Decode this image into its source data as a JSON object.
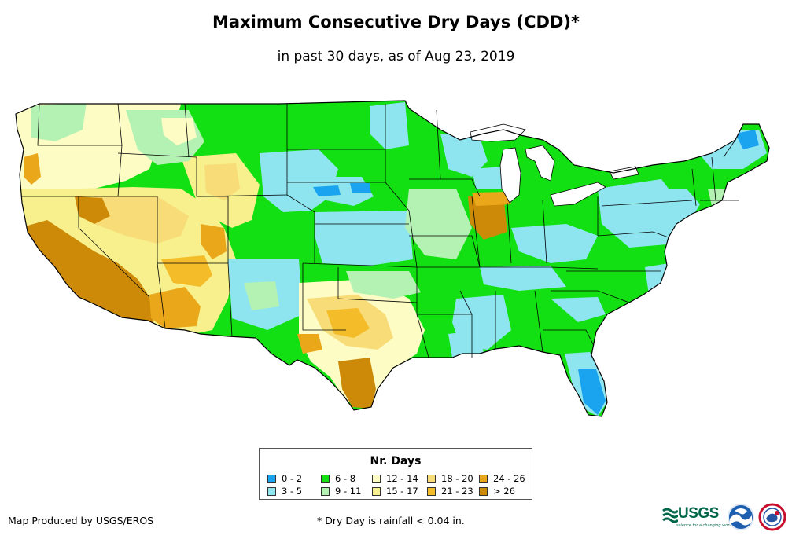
{
  "title": "Maximum Consecutive Dry Days (CDD)*",
  "subtitle": "in past 30 days, as of Aug 23, 2019",
  "legend": {
    "title": "Nr. Days",
    "items": [
      {
        "label": "0 - 2",
        "color": "#1aa3ee"
      },
      {
        "label": "3 - 5",
        "color": "#8ee5f0"
      },
      {
        "label": "6 - 8",
        "color": "#12e012"
      },
      {
        "label": "9 - 11",
        "color": "#b4f2b4"
      },
      {
        "label": "12 - 14",
        "color": "#fdfcc4"
      },
      {
        "label": "15 - 17",
        "color": "#f7f08c"
      },
      {
        "label": "18 - 20",
        "color": "#f7dc78"
      },
      {
        "label": "21 - 23",
        "color": "#f4bc28"
      },
      {
        "label": "24 - 26",
        "color": "#eba71a"
      },
      {
        "label": "> 26",
        "color": "#cc8a08"
      }
    ]
  },
  "footer": {
    "credit": "Map Produced by USGS/EROS",
    "footnote": "* Dry Day is rainfall < 0.04 in.",
    "usgs_logo": "USGS",
    "usgs_tagline": "science for a changing world",
    "noaa_logo": "NOAA",
    "nws_logo": "National Weather Service"
  }
}
